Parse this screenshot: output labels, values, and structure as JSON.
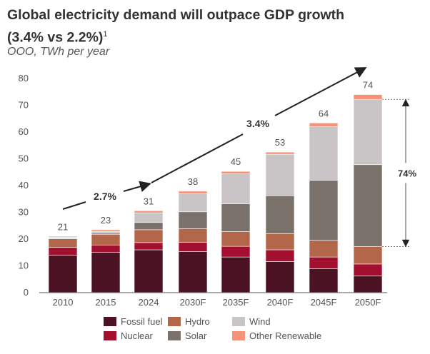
{
  "title_line1": "Global electricity demand will outpace GDP growth",
  "title_line2": "(3.4% vs 2.2%)",
  "title_footnote": "1",
  "subtitle": "OOO, TWh per year",
  "chart_data": {
    "type": "bar",
    "stacked": true,
    "categories": [
      "2010",
      "2015",
      "2024",
      "2030F",
      "2035F",
      "2040F",
      "2045F",
      "2050F"
    ],
    "totals": [
      "21",
      "23",
      "31",
      "38",
      "45",
      "53",
      "64",
      "74"
    ],
    "ylim": [
      0,
      80
    ],
    "yticks": [
      "0",
      "10",
      "20",
      "30",
      "40",
      "50",
      "60",
      "70",
      "80"
    ],
    "grid": false,
    "legend_placement": "bottom",
    "series": [
      {
        "name": "Fossil fuel",
        "color": "#4a1222",
        "values": [
          14.0,
          15.1,
          16.0,
          15.3,
          13.3,
          11.6,
          8.9,
          6.2
        ]
      },
      {
        "name": "Nuclear",
        "color": "#a3102f",
        "values": [
          2.9,
          2.7,
          2.7,
          3.5,
          4.0,
          4.4,
          4.4,
          4.5
        ]
      },
      {
        "name": "Hydro",
        "color": "#b3674a",
        "values": [
          3.2,
          4.0,
          4.8,
          5.1,
          5.5,
          6.0,
          6.3,
          6.5
        ]
      },
      {
        "name": "Solar",
        "color": "#7a716a",
        "values": [
          0.2,
          0.4,
          2.7,
          6.3,
          10.4,
          14.2,
          22.4,
          30.6
        ]
      },
      {
        "name": "Wind",
        "color": "#c9c5c6",
        "values": [
          0.4,
          0.7,
          3.6,
          6.8,
          11.2,
          15.5,
          20.0,
          24.4
        ]
      },
      {
        "name": "Other Renewable",
        "color": "#f5937a",
        "values": [
          0.3,
          0.6,
          0.8,
          0.9,
          0.9,
          0.8,
          1.4,
          1.8
        ]
      }
    ],
    "annotations": {
      "cagr_2010_2024": "2.7%",
      "cagr_2024_2050": "3.4%",
      "renewable_share_2050": "74%"
    }
  }
}
